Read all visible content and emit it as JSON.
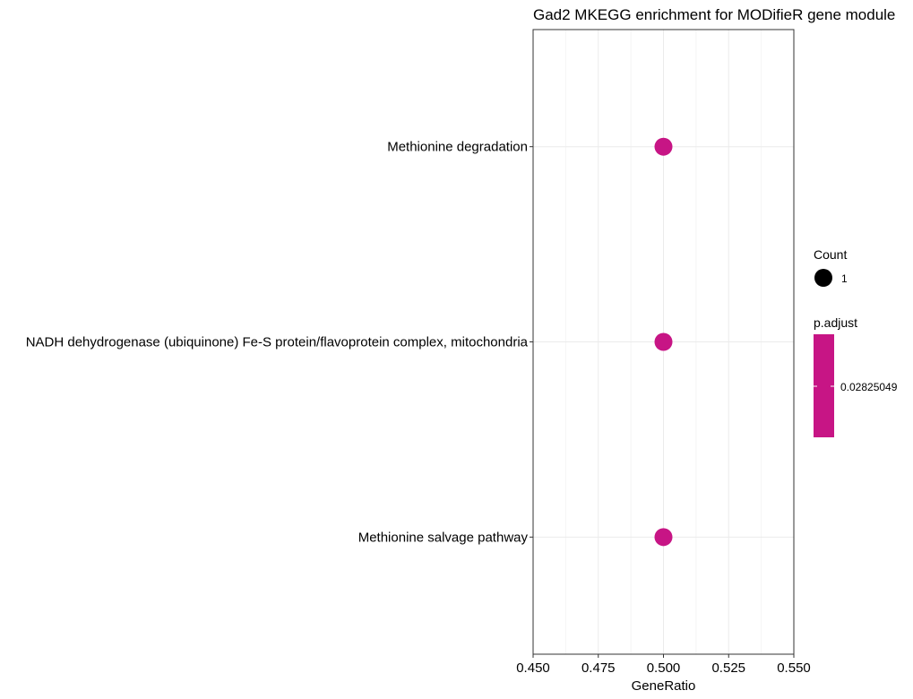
{
  "chart_data": {
    "type": "scatter",
    "title": "Gad2 MKEGG enrichment for MODifieR gene module",
    "xlabel": "GeneRatio",
    "ylabel": "",
    "xlim": [
      0.45,
      0.55
    ],
    "x_ticks": [
      "0.450",
      "0.475",
      "0.500",
      "0.525",
      "0.550"
    ],
    "grid": true,
    "categories": [
      "Methionine degradation",
      "NADH dehydrogenase (ubiquinone) Fe-S protein/flavoprotein complex, mitochondria",
      "Methionine salvage pathway"
    ],
    "points": [
      {
        "category": "Methionine degradation",
        "x": 0.5,
        "count": 1,
        "p_adjust": 0.02825049
      },
      {
        "category": "NADH dehydrogenase (ubiquinone) Fe-S protein/flavoprotein complex, mitochondria",
        "x": 0.5,
        "count": 1,
        "p_adjust": 0.02825049
      },
      {
        "category": "Methionine salvage pathway",
        "x": 0.5,
        "count": 1,
        "p_adjust": 0.02825049
      }
    ],
    "point_color": "#C71585",
    "legend": {
      "placement": "right",
      "size_title": "Count",
      "size_label": "1",
      "color_title": "p.adjust",
      "color_label": "0.02825049",
      "size_key_color": "#000000",
      "colorbar_color": "#C71585"
    }
  }
}
